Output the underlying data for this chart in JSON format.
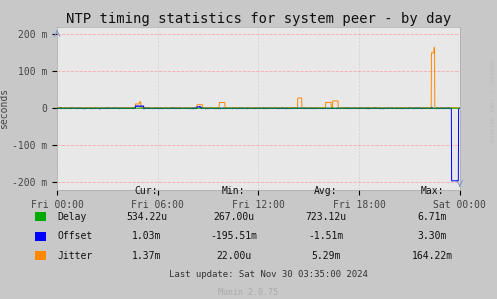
{
  "title": "NTP timing statistics for system peer - by day",
  "ylabel": "seconds",
  "background_color": "#c8c8c8",
  "plot_bg_color": "#e8e8e8",
  "grid_color_h": "#ff9999",
  "grid_color_v": "#cccccc",
  "ylim": [
    -0.22,
    0.22
  ],
  "yticks": [
    -0.2,
    -0.1,
    0.0,
    0.1,
    0.2
  ],
  "ytick_labels": [
    "-200 m",
    "-100 m",
    "0",
    "100 m",
    "200 m"
  ],
  "xtick_positions": [
    0,
    6,
    12,
    18,
    24
  ],
  "xtick_labels": [
    "Fri 00:00",
    "Fri 06:00",
    "Fri 12:00",
    "Fri 18:00",
    "Sat 00:00"
  ],
  "legend_items": [
    {
      "label": "Delay",
      "color": "#00aa00"
    },
    {
      "label": "Offset",
      "color": "#0000ff"
    },
    {
      "label": "Jitter",
      "color": "#ff8800"
    }
  ],
  "table_header": [
    "Cur:",
    "Min:",
    "Avg:",
    "Max:"
  ],
  "table_rows": [
    [
      "Delay",
      "534.22u",
      "267.00u",
      "723.12u",
      "6.71m"
    ],
    [
      "Offset",
      "1.03m",
      "-195.51m",
      "-1.51m",
      "3.30m"
    ],
    [
      "Jitter",
      "1.37m",
      "22.00u",
      "5.29m",
      "164.22m"
    ]
  ],
  "last_update": "Last update: Sat Nov 30 03:35:00 2024",
  "munin_version": "Munin 2.0.75",
  "watermark": "RRDTOOL / TOBI OETIKER",
  "title_fontsize": 10,
  "axis_fontsize": 7,
  "table_fontsize": 7
}
